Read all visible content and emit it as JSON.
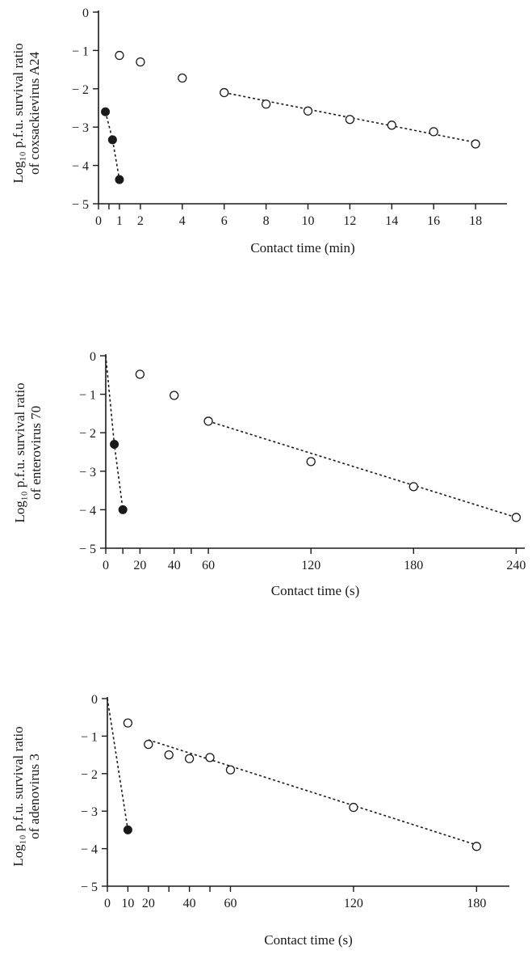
{
  "chart_data": [
    {
      "type": "scatter",
      "xlabel": "Contact time (min)",
      "ylabel_lines": [
        "Log₁₀ p.f.u. survival ratio",
        "of coxsackievirus A24"
      ],
      "xlim": [
        0,
        19.5
      ],
      "ylim": [
        -5,
        0
      ],
      "xticks": [
        0,
        1,
        2,
        4,
        6,
        8,
        10,
        12,
        14,
        16,
        18
      ],
      "xtick_labels": [
        "0",
        "1",
        "2",
        "4",
        "6",
        "8",
        "10",
        "12",
        "14",
        "16",
        "18"
      ],
      "xminor_ticks": [
        0.5
      ],
      "yticks": [
        0,
        -1,
        -2,
        -3,
        -4,
        -5
      ],
      "ytick_labels": [
        "0",
        "− 1",
        "− 2",
        "− 3",
        "− 4",
        "− 5"
      ],
      "series": [
        {
          "marker": "filled",
          "x": [
            0.33,
            0.67,
            1.0
          ],
          "y": [
            -2.6,
            -3.33,
            -4.37
          ]
        },
        {
          "marker": "open",
          "x": [
            1,
            2,
            4,
            6,
            8,
            10,
            12,
            14,
            16,
            18
          ],
          "y": [
            -1.13,
            -1.3,
            -1.72,
            -2.1,
            -2.4,
            -2.58,
            -2.8,
            -2.95,
            -3.12,
            -3.44
          ]
        }
      ],
      "fit_lines": [
        {
          "x": [
            0.33,
            0.67,
            1.0
          ],
          "y": [
            -2.6,
            -3.33,
            -4.37
          ]
        },
        {
          "x": [
            6,
            18
          ],
          "y": [
            -2.1,
            -3.4
          ]
        }
      ]
    },
    {
      "type": "scatter",
      "xlabel": "Contact time (s)",
      "ylabel_lines": [
        "Log₁₀ p.f.u. survival ratio",
        "of enterovirus 70"
      ],
      "xlim": [
        0,
        245
      ],
      "ylim": [
        -5,
        0
      ],
      "xticks": [
        0,
        20,
        40,
        60,
        120,
        180,
        240
      ],
      "xtick_labels": [
        "0",
        "20",
        "40",
        "60",
        "120",
        "180",
        "240"
      ],
      "xminor_ticks": [
        10,
        50
      ],
      "yticks": [
        0,
        -1,
        -2,
        -3,
        -4,
        -5
      ],
      "ytick_labels": [
        "0",
        "− 1",
        "− 2",
        "− 3",
        "− 4",
        "− 5"
      ],
      "series": [
        {
          "marker": "filled",
          "x": [
            5,
            10
          ],
          "y": [
            -2.3,
            -4.0
          ]
        },
        {
          "marker": "open",
          "x": [
            20,
            40,
            60,
            120,
            180,
            240
          ],
          "y": [
            -0.48,
            -1.03,
            -1.7,
            -2.75,
            -3.4,
            -4.2
          ]
        }
      ],
      "fit_lines": [
        {
          "x": [
            0,
            5,
            10
          ],
          "y": [
            0,
            -2.3,
            -4.0
          ]
        },
        {
          "x": [
            60,
            240
          ],
          "y": [
            -1.7,
            -4.2
          ]
        }
      ]
    },
    {
      "type": "scatter",
      "xlabel": "Contact time (s)",
      "ylabel_lines": [
        "Log₁₀ p.f.u. survival ratio",
        "of adenovirus 3"
      ],
      "xlim": [
        0,
        196
      ],
      "ylim": [
        -5,
        0
      ],
      "xticks": [
        0,
        10,
        20,
        40,
        60,
        120,
        180
      ],
      "xtick_labels": [
        "0",
        "10",
        "20",
        "40",
        "60",
        "120",
        "180"
      ],
      "xminor_ticks": [
        30,
        50
      ],
      "yticks": [
        0,
        -1,
        -2,
        -3,
        -4,
        -5
      ],
      "ytick_labels": [
        "0",
        "− 1",
        "− 2",
        "− 3",
        "− 4",
        "− 5"
      ],
      "series": [
        {
          "marker": "filled",
          "x": [
            10
          ],
          "y": [
            -3.5
          ]
        },
        {
          "marker": "open",
          "x": [
            10,
            20,
            30,
            40,
            50,
            60,
            120,
            180
          ],
          "y": [
            -0.65,
            -1.22,
            -1.5,
            -1.6,
            -1.57,
            -1.9,
            -2.9,
            -3.94
          ]
        }
      ],
      "fit_lines": [
        {
          "x": [
            0,
            10
          ],
          "y": [
            0,
            -3.5
          ]
        },
        {
          "x": [
            20,
            180
          ],
          "y": [
            -1.1,
            -3.9
          ]
        }
      ]
    }
  ]
}
